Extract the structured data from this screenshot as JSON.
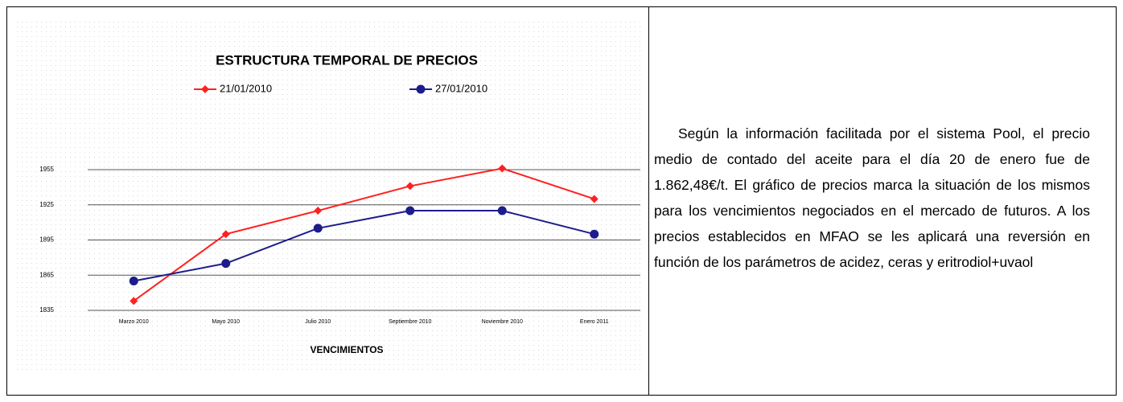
{
  "chart_data": {
    "type": "line",
    "title": "ESTRUCTURA TEMPORAL DE PRECIOS",
    "x_label": "VENCIMIENTOS",
    "categories": [
      "Marzo 2010",
      "Mayo 2010",
      "Julio 2010",
      "Septiembre 2010",
      "Noviembre 2010",
      "Enero 2011"
    ],
    "series": [
      {
        "name": "21/01/2010",
        "color": "#ff2020",
        "marker": "diamond",
        "values": [
          1843,
          1900,
          1920,
          1941,
          1956,
          1930
        ]
      },
      {
        "name": "27/01/2010",
        "color": "#1c1c8c",
        "marker": "circle",
        "values": [
          1860,
          1875,
          1905,
          1920,
          1920,
          1900
        ]
      }
    ],
    "ylim": [
      1835,
      1955
    ],
    "yticks": [
      1835,
      1865,
      1895,
      1925,
      1955
    ],
    "grid": true,
    "legend": "top"
  },
  "paragraph": "Según la información facilitada por el sistema Pool, el precio medio de contado del aceite para el día 20 de enero fue de 1.862,48€/t. El gráfico de precios marca la situación de los mismos para los vencimientos negociados en el mercado de futuros. A los precios establecidos en MFAO se les aplicará una reversión en función de los parámetros de acidez, ceras y eritrodiol+uvaol"
}
